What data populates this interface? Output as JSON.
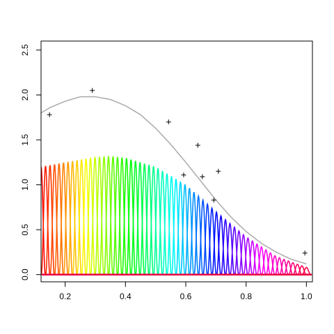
{
  "chart_data": {
    "type": "line",
    "title": "",
    "xlabel": "",
    "ylabel": "",
    "xlim": [
      0.12,
      1.02
    ],
    "ylim": [
      -0.08,
      2.6
    ],
    "x_ticks": [
      0.2,
      0.4,
      0.6,
      0.8,
      1.0
    ],
    "x_tick_labels": [
      "0.2",
      "0.4",
      "0.6",
      "0.8",
      "1.0"
    ],
    "y_ticks": [
      0.0,
      0.5,
      1.0,
      1.5,
      2.0,
      2.5
    ],
    "y_tick_labels": [
      "0.0",
      "0.5",
      "1.0",
      "1.5",
      "2.0",
      "2.5"
    ],
    "grid": false,
    "scatter_points": {
      "marker": "+",
      "color": "#000000",
      "x": [
        0.148,
        0.29,
        0.543,
        0.593,
        0.64,
        0.655,
        0.693,
        0.708,
        0.995
      ],
      "y": [
        1.78,
        2.05,
        1.7,
        1.11,
        1.44,
        1.09,
        0.83,
        1.15,
        0.24
      ]
    },
    "smooth_curve": {
      "color": "#aaaaaa",
      "x": [
        0.12,
        0.15,
        0.2,
        0.25,
        0.3,
        0.35,
        0.4,
        0.45,
        0.5,
        0.55,
        0.6,
        0.65,
        0.7,
        0.75,
        0.8,
        0.85,
        0.9,
        0.95,
        1.0
      ],
      "y": [
        1.8,
        1.86,
        1.93,
        1.98,
        1.98,
        1.95,
        1.88,
        1.78,
        1.63,
        1.45,
        1.25,
        1.04,
        0.83,
        0.64,
        0.48,
        0.35,
        0.25,
        0.17,
        0.12
      ]
    },
    "basis_curves": {
      "description_of_shape": "many narrow bumps with rainbow colors",
      "count": 60,
      "x_start": 0.12,
      "x_end": 1.0,
      "envelope_x": [
        0.12,
        0.2,
        0.3,
        0.35,
        0.4,
        0.5,
        0.6,
        0.7,
        0.8,
        0.9,
        1.0
      ],
      "envelope_y": [
        1.2,
        1.25,
        1.31,
        1.32,
        1.3,
        1.2,
        1.0,
        0.7,
        0.42,
        0.2,
        0.08
      ],
      "colors": [
        "#ff0000",
        "#ffff00",
        "#00ff00",
        "#00ffff",
        "#0000ff",
        "#ff00ff",
        "#ff0040"
      ]
    },
    "baseline": {
      "y": 0.0,
      "color": "#e8003c"
    }
  }
}
